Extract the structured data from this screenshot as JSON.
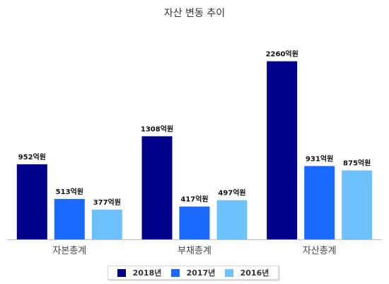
{
  "chart_data": {
    "type": "bar",
    "title": "자산 변동 추이",
    "categories": [
      "자본총계",
      "부채총계",
      "자산총계"
    ],
    "unit_suffix": "억원",
    "series": [
      {
        "name": "2018년",
        "color": "#00008b",
        "values": [
          952,
          1308,
          2260
        ]
      },
      {
        "name": "2017년",
        "color": "#1a6aff",
        "values": [
          513,
          417,
          931
        ]
      },
      {
        "name": "2016년",
        "color": "#6ec1ff",
        "values": [
          377,
          497,
          875
        ]
      }
    ],
    "ylim": [
      0,
      2500
    ],
    "grid": false,
    "legend_position": "bottom"
  }
}
